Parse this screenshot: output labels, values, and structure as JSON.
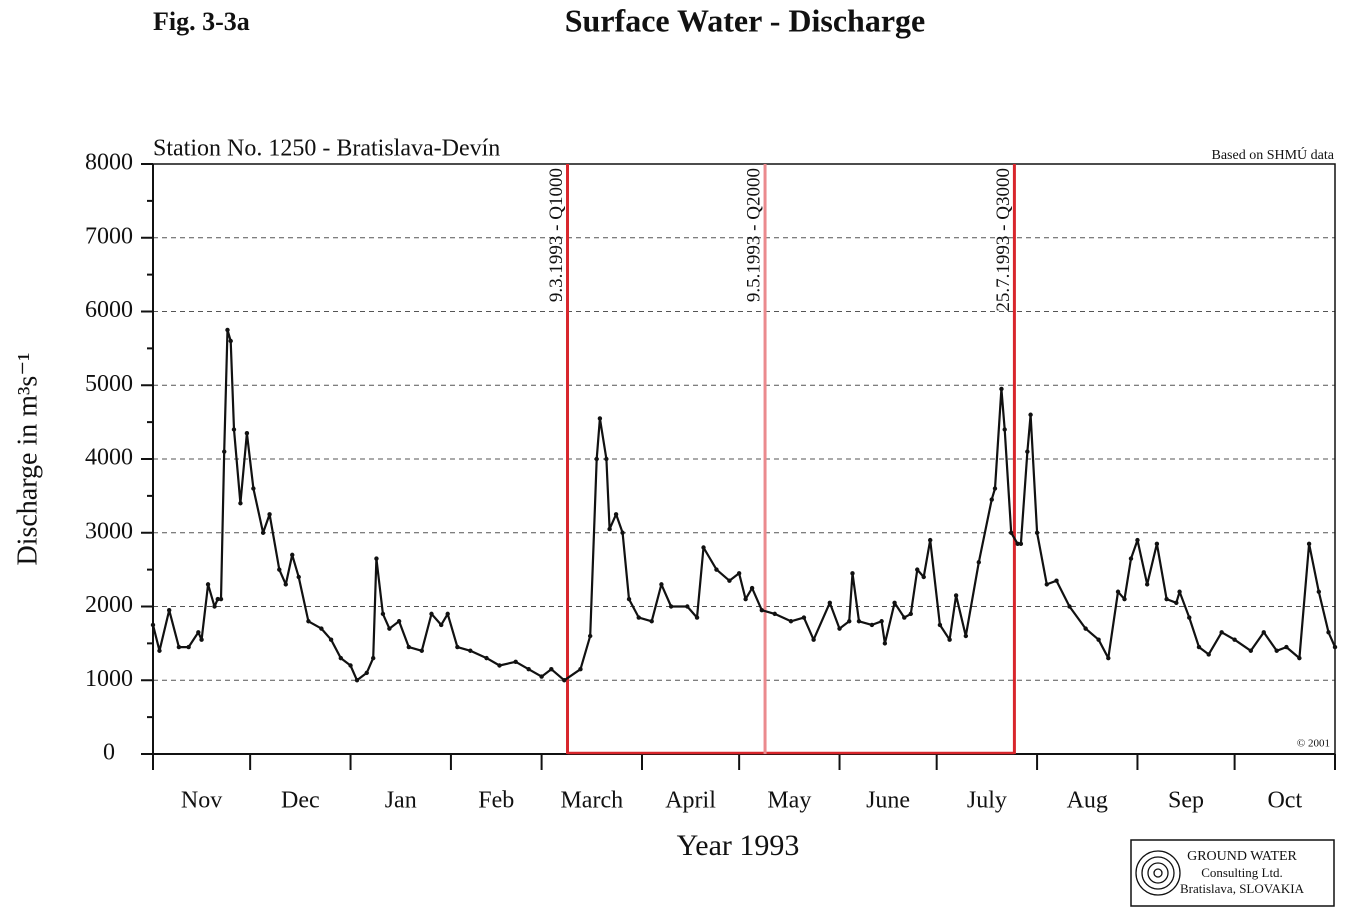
{
  "figure_label": "Fig. 3-3a",
  "logo": {
    "lines": [
      "GROUND WATER",
      "Consulting Ltd.",
      "Bratislava, SLOVAKIA"
    ]
  },
  "chart_data": {
    "type": "line",
    "title": "Surface Water - Discharge",
    "subtitle": "Station No. 1250 - Bratislava-Devín",
    "source_note": "Based on SHMÚ data",
    "copyright": "© 2001",
    "xlabel": "Year 1993",
    "ylabel": "Discharge in m³s⁻¹",
    "month_labels": [
      "Nov",
      "Dec",
      "Jan",
      "Feb",
      "March",
      "April",
      "May",
      "June",
      "July",
      "Aug",
      "Sep",
      "Oct"
    ],
    "xlim": [
      0,
      365
    ],
    "xticks": [
      0,
      30,
      61,
      92,
      120,
      151,
      181,
      212,
      242,
      273,
      304,
      334,
      365
    ],
    "ylim": [
      0,
      8000
    ],
    "yticks": [
      0,
      1000,
      2000,
      3000,
      4000,
      5000,
      6000,
      7000,
      8000
    ],
    "yticks_minor": [
      500,
      1500,
      2500,
      3500,
      4500,
      5500,
      6500,
      7500
    ],
    "grid": true,
    "annotations": [
      {
        "x": 128,
        "label": "9.3.1993 - Q1000",
        "color": "#d8262c"
      },
      {
        "x": 189,
        "label": "9.5.1993 - Q2000",
        "color": "#eb8a8e"
      },
      {
        "x": 266,
        "label": "25.7.1993 - Q3000",
        "color": "#d8262c"
      }
    ],
    "series": [
      {
        "color": "#111111",
        "x": [
          0,
          2,
          5,
          8,
          11,
          14,
          15,
          17,
          19,
          20,
          21,
          22,
          23,
          24,
          25,
          27,
          29,
          31,
          34,
          36,
          39,
          41,
          43,
          45,
          48,
          52,
          55,
          58,
          61,
          63,
          66,
          68,
          69,
          71,
          73,
          76,
          79,
          83,
          86,
          89,
          91,
          94,
          98,
          103,
          107,
          112,
          116,
          120,
          123,
          127,
          132,
          135,
          137,
          138,
          140,
          141,
          143,
          145,
          147,
          150,
          154,
          157,
          160,
          165,
          168,
          170,
          174,
          178,
          181,
          183,
          185,
          188,
          192,
          197,
          201,
          204,
          209,
          212,
          215,
          216,
          218,
          222,
          225,
          226,
          229,
          232,
          234,
          236,
          238,
          240,
          243,
          246,
          248,
          251,
          255,
          259,
          260,
          262,
          263,
          265,
          267,
          268,
          270,
          271,
          273,
          276,
          279,
          283,
          288,
          292,
          295,
          298,
          300,
          302,
          304,
          307,
          310,
          313,
          316,
          317,
          320,
          323,
          326,
          330,
          334,
          339,
          343,
          347,
          350,
          354,
          357,
          360,
          363,
          365
        ],
        "values": [
          1750,
          1400,
          1950,
          1450,
          1450,
          1650,
          1550,
          2300,
          2000,
          2100,
          2100,
          4100,
          5750,
          5600,
          4400,
          3400,
          4350,
          3600,
          3000,
          3250,
          2500,
          2300,
          2700,
          2400,
          1800,
          1700,
          1550,
          1300,
          1200,
          1000,
          1100,
          1300,
          2650,
          1900,
          1700,
          1800,
          1450,
          1400,
          1900,
          1750,
          1900,
          1450,
          1400,
          1300,
          1200,
          1250,
          1150,
          1050,
          1150,
          1000,
          1150,
          1600,
          4000,
          4550,
          4000,
          3050,
          3250,
          3000,
          2100,
          1850,
          1800,
          2300,
          2000,
          2000,
          1850,
          2800,
          2500,
          2350,
          2450,
          2100,
          2250,
          1950,
          1900,
          1800,
          1850,
          1550,
          2050,
          1700,
          1800,
          2450,
          1800,
          1750,
          1800,
          1500,
          2050,
          1850,
          1900,
          2500,
          2400,
          2900,
          1750,
          1550,
          2150,
          1600,
          2600,
          3450,
          3600,
          4950,
          4400,
          3000,
          2850,
          2850,
          4100,
          4600,
          3000,
          2300,
          2350,
          2000,
          1700,
          1550,
          1300,
          2200,
          2100,
          2650,
          2900,
          2300,
          2850,
          2100,
          2050,
          2200,
          1850,
          1450,
          1350,
          1650,
          1550,
          1400,
          1650,
          1400,
          1450,
          1300,
          2850,
          2200,
          1650,
          1450
        ]
      }
    ]
  }
}
